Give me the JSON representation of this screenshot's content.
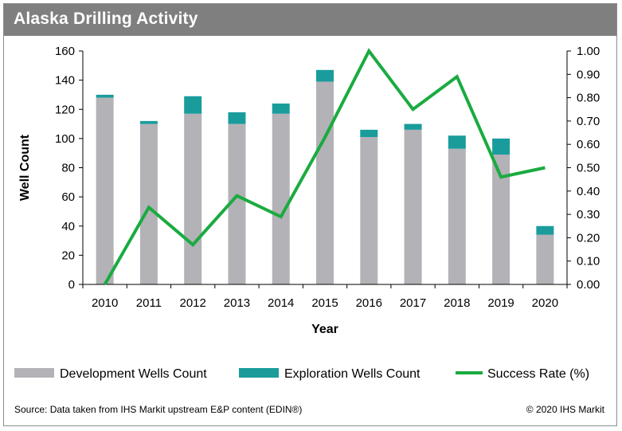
{
  "title": "Alaska Drilling  Activity",
  "chart_data": {
    "type": "bar",
    "stacked": true,
    "categories": [
      "2010",
      "2011",
      "2012",
      "2013",
      "2014",
      "2015",
      "2016",
      "2017",
      "2018",
      "2019",
      "2020"
    ],
    "series": [
      {
        "name": "Development Wells Count",
        "type": "bar",
        "axis": "left",
        "color": "#b3b2b7",
        "values": [
          128,
          110,
          117,
          110,
          117,
          139,
          101,
          106,
          93,
          89,
          34
        ]
      },
      {
        "name": "Exploration Wells Count",
        "type": "bar",
        "axis": "left",
        "color": "#1a9c9c",
        "values": [
          2,
          2,
          12,
          8,
          7,
          8,
          5,
          4,
          9,
          11,
          6
        ]
      },
      {
        "name": "Success Rate (%)",
        "type": "line",
        "axis": "right",
        "color": "#1aab40",
        "values": [
          0.0,
          0.33,
          0.17,
          0.38,
          0.29,
          0.63,
          1.0,
          0.75,
          0.89,
          0.46,
          0.5
        ]
      }
    ],
    "xlabel": "Year",
    "ylabel": "Well Count",
    "ylim": [
      0,
      160
    ],
    "yticks": [
      "0",
      "20",
      "40",
      "60",
      "80",
      "100",
      "120",
      "140",
      "160"
    ],
    "y2lim": [
      0,
      1
    ],
    "y2ticks": [
      "0.00",
      "0.10",
      "0.20",
      "0.30",
      "0.40",
      "0.50",
      "0.60",
      "0.70",
      "0.80",
      "0.90",
      "1.00"
    ],
    "grid": false,
    "legend_position": "bottom"
  },
  "footer": {
    "source": "Source: Data taken from IHS Markit upstream E&P content (EDIN®)",
    "copyright": "© 2020 IHS Markit"
  }
}
